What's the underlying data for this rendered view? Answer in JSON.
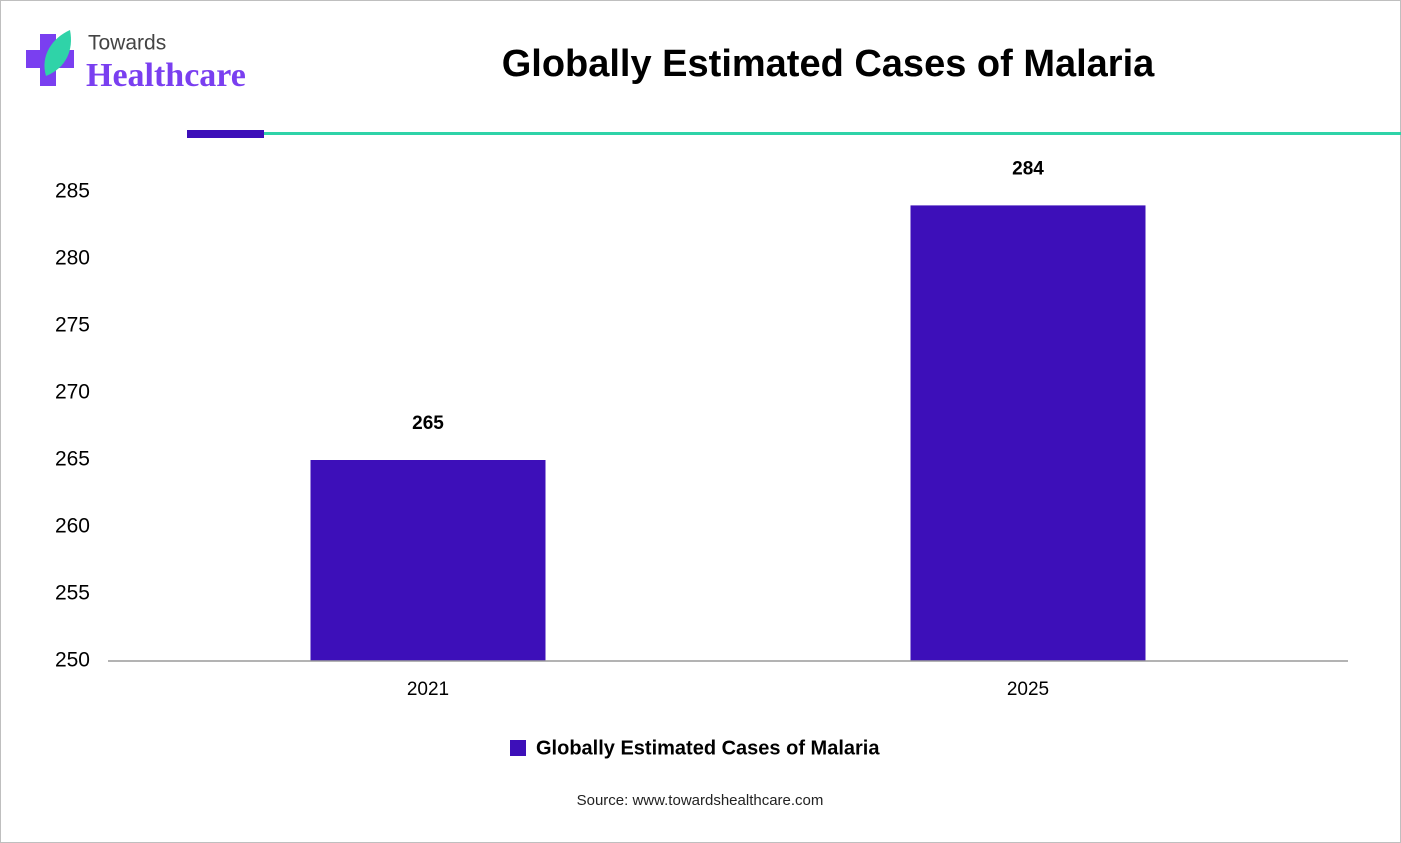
{
  "logo": {
    "top": "Towards",
    "bottom": "Healthcare"
  },
  "chart_data": {
    "type": "bar",
    "title": "Globally Estimated Cases of Malaria",
    "categories": [
      "2021",
      "2025"
    ],
    "series": [
      {
        "name": "Globally Estimated Cases of Malaria",
        "color": "#3d0fb9",
        "values": [
          265,
          284
        ]
      }
    ],
    "ylim": [
      250,
      285
    ],
    "yticks": [
      250,
      255,
      260,
      265,
      270,
      275,
      280,
      285
    ],
    "legend": "bottom",
    "grid": false,
    "source": "Source: www.towardshealthcare.com"
  }
}
